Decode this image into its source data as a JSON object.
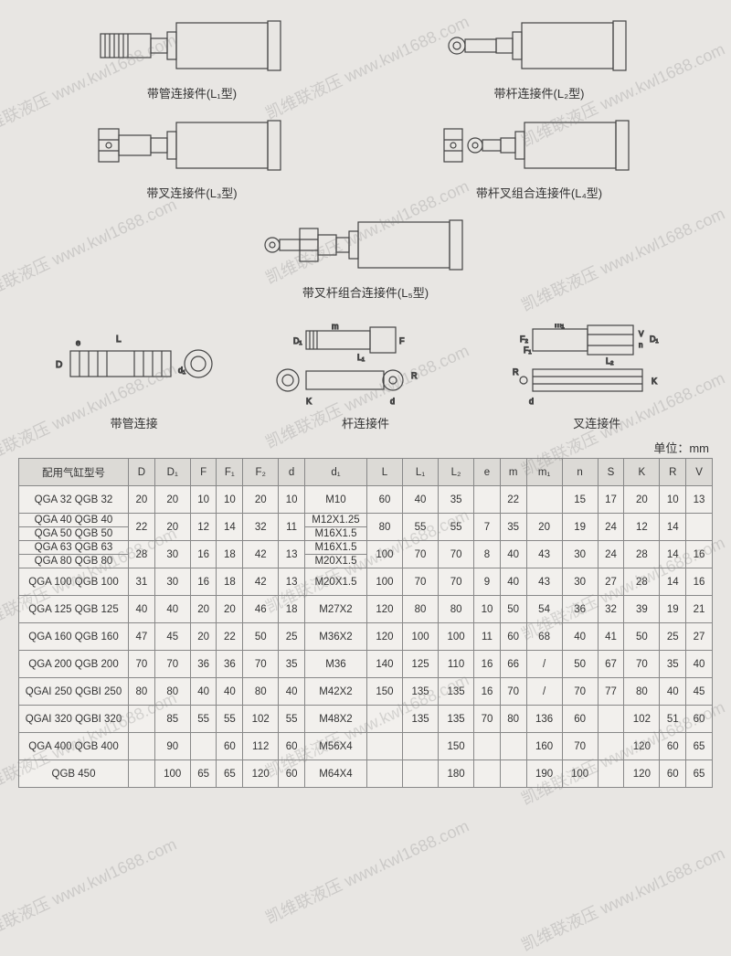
{
  "watermark_text": "凯维联液压  www.kwl1688.com",
  "diagram_labels": {
    "l1": "带管连接件(L₁型)",
    "l2": "带杆连接件(L₂型)",
    "l3": "带叉连接件(L₃型)",
    "l4": "带杆叉组合连接件(L₄型)",
    "l5": "带叉杆组合连接件(L₅型)"
  },
  "dim_labels": {
    "a": "带管连接",
    "b": "杆连接件",
    "c": "叉连接件"
  },
  "unit_text": "单位：mm",
  "table": {
    "header_bg": "#dcdad6",
    "border_color": "#888",
    "font_size": 11.5,
    "columns": [
      "配用气缸型号",
      "D",
      "D₁",
      "F",
      "F₁",
      "F₂",
      "d",
      "d₁",
      "L",
      "L₁",
      "L₂",
      "e",
      "m",
      "m₁",
      "n",
      "S",
      "K",
      "R",
      "V"
    ],
    "rows": [
      {
        "model": "QGA 32  QGB 32",
        "D": "20",
        "D1": "20",
        "F": "10",
        "F1": "10",
        "F2": "20",
        "d": "10",
        "d1": "M10",
        "L": "60",
        "L1": "40",
        "L2": "35",
        "e": "",
        "m": "22",
        "m1": "",
        "n": "15",
        "S": "17",
        "K": "20",
        "R": "10",
        "V": "13"
      },
      {
        "model": "QGA 40  QGB 40\nQGA 50  QGB 50",
        "D": "22",
        "D1": "20",
        "F": "12",
        "F1": "14",
        "F2": "32",
        "d": "11",
        "d1": "M12X1.25\nM16X1.5",
        "L": "80",
        "L1": "55",
        "L2": "55",
        "e": "7",
        "m": "35",
        "m1": "20",
        "n": "19",
        "S": "24",
        "K": "12",
        "R": "14",
        "V": ""
      },
      {
        "model": "QGA 63  QGB 63\nQGA 80  QGB 80",
        "D": "28",
        "D1": "30",
        "F": "16",
        "F1": "18",
        "F2": "42",
        "d": "13",
        "d1": "M16X1.5\nM20X1.5",
        "L": "100",
        "L1": "70",
        "L2": "70",
        "e": "8",
        "m": "40",
        "m1": "43",
        "n": "30",
        "S": "24",
        "K": "28",
        "R": "14",
        "V": "16"
      },
      {
        "model": "QGA 100  QGB 100",
        "D": "31",
        "D1": "30",
        "F": "16",
        "F1": "18",
        "F2": "42",
        "d": "13",
        "d1": "M20X1.5",
        "L": "100",
        "L1": "70",
        "L2": "70",
        "e": "9",
        "m": "40",
        "m1": "43",
        "n": "30",
        "S": "27",
        "K": "28",
        "R": "14",
        "V": "16"
      },
      {
        "model": "QGA 125  QGB 125",
        "D": "40",
        "D1": "40",
        "F": "20",
        "F1": "20",
        "F2": "46",
        "d": "18",
        "d1": "M27X2",
        "L": "120",
        "L1": "80",
        "L2": "80",
        "e": "10",
        "m": "50",
        "m1": "54",
        "n": "36",
        "S": "32",
        "K": "39",
        "R": "19",
        "V": "21"
      },
      {
        "model": "QGA 160  QGB 160",
        "D": "47",
        "D1": "45",
        "F": "20",
        "F1": "22",
        "F2": "50",
        "d": "25",
        "d1": "M36X2",
        "L": "120",
        "L1": "100",
        "L2": "100",
        "e": "11",
        "m": "60",
        "m1": "68",
        "n": "40",
        "S": "41",
        "K": "50",
        "R": "25",
        "V": "27"
      },
      {
        "model": "QGA 200  QGB 200",
        "D": "70",
        "D1": "70",
        "F": "36",
        "F1": "36",
        "F2": "70",
        "d": "35",
        "d1": "M36",
        "L": "140",
        "L1": "125",
        "L2": "110",
        "e": "16",
        "m": "66",
        "m1": "/",
        "n": "50",
        "S": "67",
        "K": "70",
        "R": "35",
        "V": "40"
      },
      {
        "model": "QGAI 250  QGBI 250",
        "D": "80",
        "D1": "80",
        "F": "40",
        "F1": "40",
        "F2": "80",
        "d": "40",
        "d1": "M42X2",
        "L": "150",
        "L1": "135",
        "L2": "135",
        "e": "16",
        "m": "70",
        "m1": "/",
        "n": "70",
        "S": "77",
        "K": "80",
        "R": "40",
        "V": "45"
      },
      {
        "model": "QGAI 320  QGBI 320",
        "D": "",
        "D1": "85",
        "F": "55",
        "F1": "55",
        "F2": "102",
        "d": "55",
        "d1": "M48X2",
        "L": "",
        "L1": "135",
        "L2": "135",
        "e": "70",
        "m": "80",
        "m1": "136",
        "n": "60",
        "S": "",
        "K": "102",
        "R": "51",
        "V": "60"
      },
      {
        "model": "QGA 400  QGB 400",
        "D": "",
        "D1": "90",
        "F": "",
        "F1": "60",
        "F2": "112",
        "d": "60",
        "d1": "M56X4",
        "L": "",
        "L1": "",
        "L2": "150",
        "e": "",
        "m": "",
        "m1": "160",
        "n": "70",
        "S": "",
        "K": "120",
        "R": "60",
        "V": "65"
      },
      {
        "model": "QGB 450",
        "D": "",
        "D1": "100",
        "F": "65",
        "F1": "65",
        "F2": "120",
        "d": "60",
        "d1": "M64X4",
        "L": "",
        "L1": "",
        "L2": "180",
        "e": "",
        "m": "",
        "m1": "190",
        "n": "100",
        "S": "",
        "K": "120",
        "R": "60",
        "V": "65"
      }
    ]
  }
}
